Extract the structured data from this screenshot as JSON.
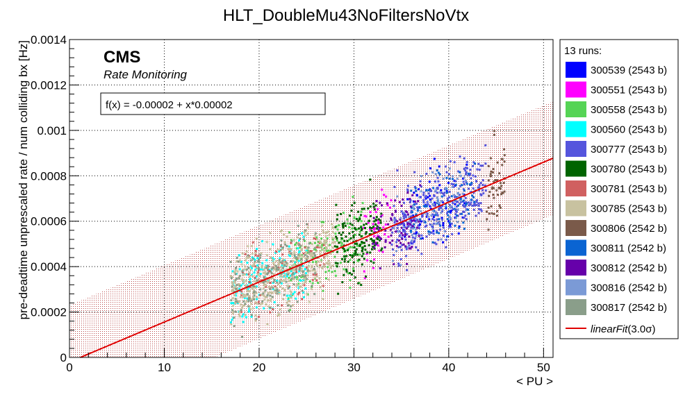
{
  "chart_data": {
    "type": "scatter",
    "title": "HLT_DoubleMu43NoFiltersNoVtx",
    "xlabel": "< PU >",
    "ylabel": "pre-deadtime unprescaled rate / num colliding bx [Hz]",
    "xlim": [
      0,
      51
    ],
    "ylim": [
      0,
      0.0014
    ],
    "x_ticks": [
      0,
      10,
      20,
      30,
      40,
      50
    ],
    "y_ticks": [
      0,
      0.0002,
      0.0004,
      0.0006,
      0.0008,
      0.001,
      0.0012,
      0.0014
    ],
    "y_tick_labels": [
      "0",
      "0.0002",
      "0.0004",
      "0.0006",
      "0.0008",
      "0.001",
      "0.0012",
      "0.0014"
    ],
    "grid": true,
    "legend_position": "right",
    "legend_header": "13 runs:",
    "cms_label": "CMS",
    "cms_sublabel": "Rate Monitoring",
    "fit": {
      "label": "f(x) = -0.00002 + x*0.00002",
      "legend_label_italic": "linearFit",
      "legend_label_rest": "(3.0σ)",
      "intercept": -2e-05,
      "slope": 1.76e-05,
      "band_halfwidth": 0.00025,
      "x_range": [
        0.5,
        51
      ],
      "color": "#e00000"
    },
    "series": [
      {
        "name": "300539 (2543 b)",
        "color": "#0000ff",
        "x_range": [
          35,
          42
        ],
        "y_center_offset": 0.0,
        "n": 80
      },
      {
        "name": "300551 (2543 b)",
        "color": "#ff00ff",
        "x_range": [
          31,
          34
        ],
        "y_center_offset": 0.0,
        "n": 45
      },
      {
        "name": "300558 (2543 b)",
        "color": "#55d455",
        "x_range": [
          23,
          31
        ],
        "y_center_offset": 0.0,
        "n": 140
      },
      {
        "name": "300560 (2543 b)",
        "color": "#00ffff",
        "x_range": [
          17,
          25
        ],
        "y_center_offset": 0.0,
        "n": 160
      },
      {
        "name": "300777 (2543 b)",
        "color": "#5555dd",
        "x_range": [
          34,
          44
        ],
        "y_center_offset": 0.0,
        "n": 300
      },
      {
        "name": "300780 (2543 b)",
        "color": "#006400",
        "x_range": [
          28,
          33
        ],
        "y_center_offset": 0.0,
        "n": 170
      },
      {
        "name": "300781 (2543 b)",
        "color": "#d06060",
        "x_range": [
          18,
          27
        ],
        "y_center_offset": 0.0,
        "n": 90
      },
      {
        "name": "300785 (2543 b)",
        "color": "#c8c2a0",
        "x_range": [
          17,
          28
        ],
        "y_center_offset": 0.0,
        "n": 420
      },
      {
        "name": "300806 (2542 b)",
        "color": "#7a5a4a",
        "x_range": [
          44,
          46
        ],
        "y_center_offset": 0.0,
        "n": 55
      },
      {
        "name": "300811 (2542 b)",
        "color": "#0a64d2",
        "x_range": [
          36,
          43
        ],
        "y_center_offset": 0.0,
        "n": 90
      },
      {
        "name": "300812 (2542 b)",
        "color": "#6600aa",
        "x_range": [
          32,
          37
        ],
        "y_center_offset": 0.0,
        "n": 80
      },
      {
        "name": "300816 (2542 b)",
        "color": "#7b9ad6",
        "x_range": [
          34,
          42
        ],
        "y_center_offset": 0.0,
        "n": 80
      },
      {
        "name": "300817 (2542 b)",
        "color": "#8a9e8a",
        "x_range": [
          17,
          26
        ],
        "y_center_offset": 0.0,
        "n": 170
      }
    ]
  }
}
